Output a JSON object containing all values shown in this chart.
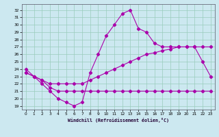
{
  "xlabel": "Windchill (Refroidissement éolien,°C)",
  "background_color": "#cce8f0",
  "grid_color": "#99ccbb",
  "line_color": "#aa00aa",
  "xlim": [
    -0.5,
    23.5
  ],
  "ylim": [
    18.5,
    32.8
  ],
  "yticks": [
    19,
    20,
    21,
    22,
    23,
    24,
    25,
    26,
    27,
    28,
    29,
    30,
    31,
    32
  ],
  "xticks": [
    0,
    1,
    2,
    3,
    4,
    5,
    6,
    7,
    8,
    9,
    10,
    11,
    12,
    13,
    14,
    15,
    16,
    17,
    18,
    19,
    20,
    21,
    22,
    23
  ],
  "curve_peak_x": [
    0,
    1,
    2,
    3,
    4,
    5,
    6,
    7,
    8,
    9,
    10,
    11,
    12,
    13,
    14,
    15,
    16,
    17,
    18,
    19,
    20,
    21,
    22,
    23
  ],
  "curve_peak_y": [
    24,
    23,
    22,
    21,
    20,
    19.5,
    19,
    19.5,
    23.5,
    26,
    28.5,
    30,
    31.5,
    32,
    29.5,
    29,
    27.5,
    27,
    27,
    27,
    27,
    27,
    25,
    23
  ],
  "curve_diag_x": [
    0,
    1,
    2,
    3,
    4,
    5,
    6,
    7,
    8,
    9,
    10,
    11,
    12,
    13,
    14,
    15,
    16,
    17,
    18,
    19,
    20,
    21,
    22,
    23
  ],
  "curve_diag_y": [
    23.5,
    23,
    22.5,
    22,
    22,
    22,
    22,
    22,
    22.5,
    23,
    23.5,
    24,
    24.5,
    25,
    25.5,
    26,
    26.2,
    26.5,
    26.7,
    27,
    27,
    27,
    27,
    27
  ],
  "curve_flat_x": [
    0,
    1,
    2,
    3,
    4,
    5,
    6,
    7,
    8,
    9,
    10,
    11,
    12,
    13,
    14,
    15,
    16,
    17,
    18,
    19,
    20,
    21,
    22,
    23
  ],
  "curve_flat_y": [
    23.5,
    23,
    22.5,
    21.5,
    21,
    21,
    21,
    21,
    21,
    21,
    21,
    21,
    21,
    21,
    21,
    21,
    21,
    21,
    21,
    21,
    21,
    21,
    21,
    21
  ]
}
